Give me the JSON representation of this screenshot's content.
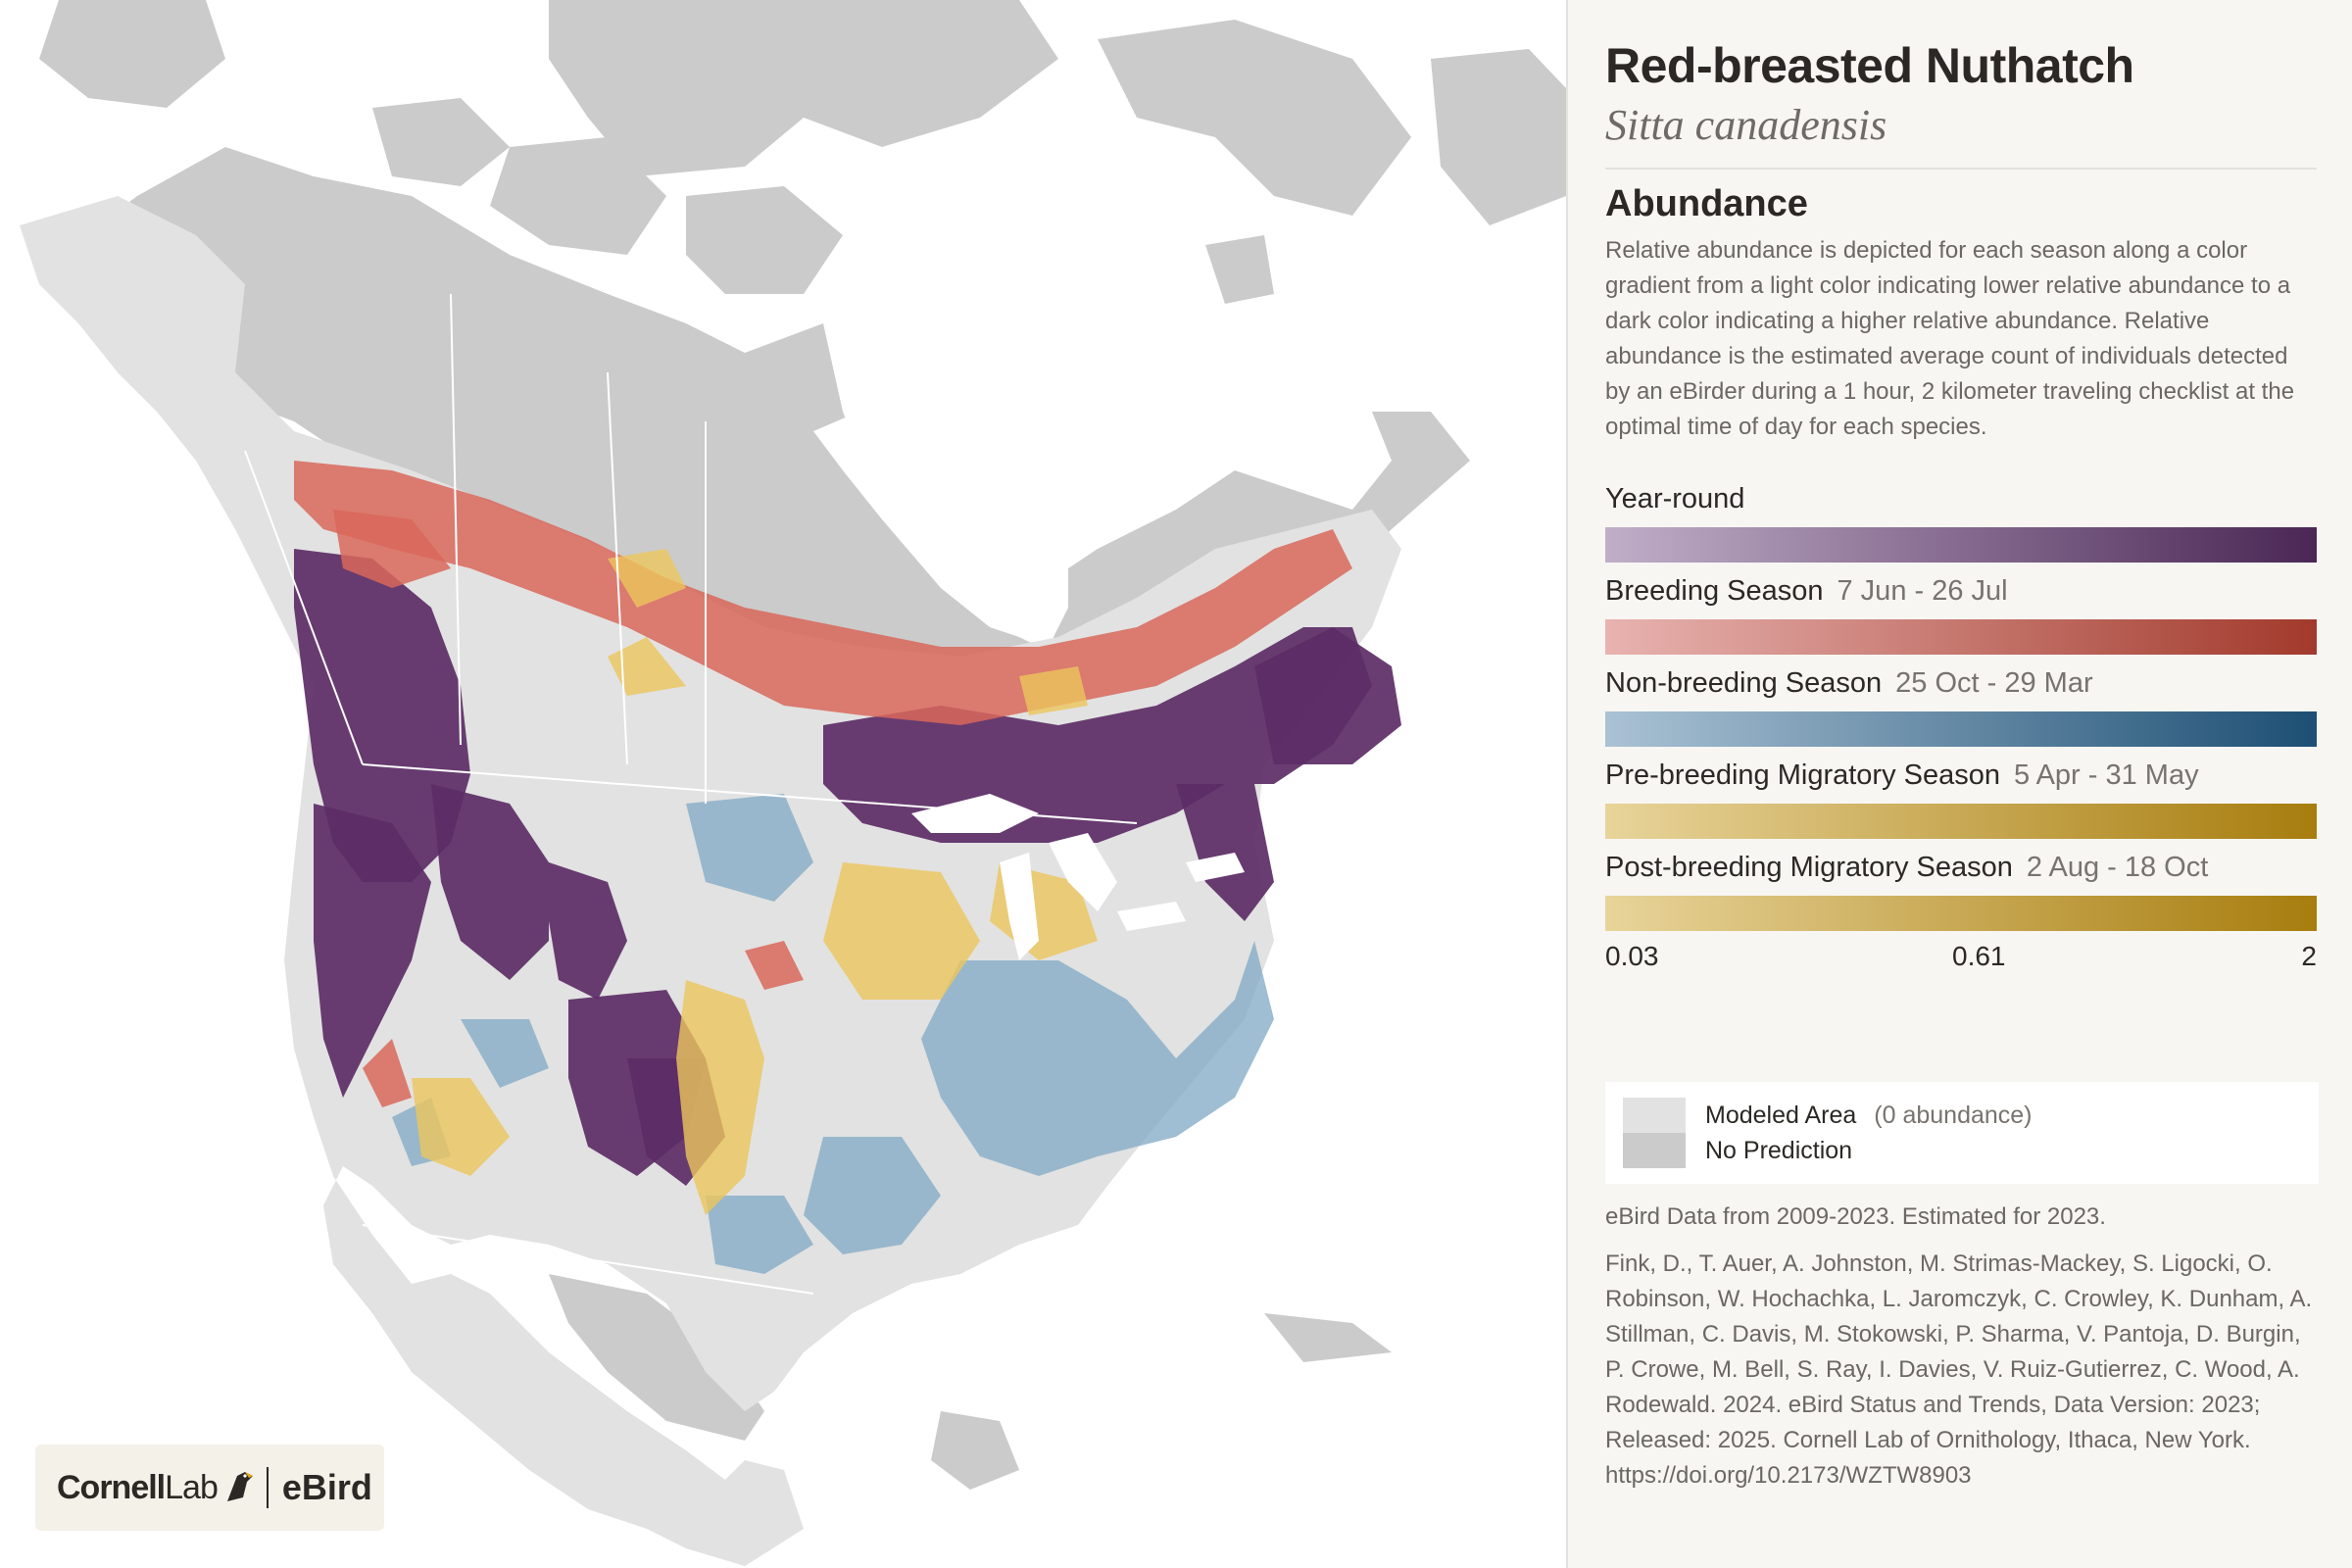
{
  "species": {
    "common_name": "Red-breasted Nuthatch",
    "scientific_name": "Sitta canadensis"
  },
  "abundance": {
    "heading": "Abundance",
    "description": "Relative abundance is depicted for each season along a color gradient from a light color indicating lower relative abundance to a dark color indicating a higher relative abundance. Relative abundance is the estimated average count of individuals detected by an eBirder during a 1 hour, 2 kilometer traveling checklist at the optimal time of day for each species."
  },
  "seasons": [
    {
      "label": "Year-round",
      "dates": "",
      "color_start": "#c0aec8",
      "color_end": "#4a2755"
    },
    {
      "label": "Breeding Season",
      "dates": "7 Jun - 26 Jul",
      "color_start": "#e8b3b0",
      "color_end": "#a23a2c"
    },
    {
      "label": "Non-breeding Season",
      "dates": "25 Oct - 29 Mar",
      "color_start": "#aac2d4",
      "color_end": "#1d4f74"
    },
    {
      "label": "Pre-breeding Migratory Season",
      "dates": "5 Apr - 31 May",
      "color_start": "#e8d49a",
      "color_end": "#a77d0e"
    },
    {
      "label": "Post-breeding Migratory Season",
      "dates": "2 Aug - 18 Oct",
      "color_start": "#e8d49a",
      "color_end": "#a77d0e"
    }
  ],
  "scale": {
    "min": "0.03",
    "mid": "0.61",
    "max": "2"
  },
  "legend": {
    "modeled_area": "Modeled Area",
    "modeled_area_note": "(0 abundance)",
    "no_prediction": "No Prediction",
    "modeled_color": "#e2e2e2",
    "no_prediction_color": "#cbcbcb"
  },
  "data_note": "eBird Data from 2009-2023. Estimated for 2023.",
  "citation": "Fink, D., T. Auer, A. Johnston, M. Strimas-Mackey, S. Ligocki, O. Robinson, W. Hochachka, L. Jaromczyk, C. Crowley, K. Dunham, A. Stillman, C. Davis, M. Stokowski, P. Sharma, V. Pantoja, D. Burgin, P. Crowe, M. Bell, S. Ray, I. Davies, V. Ruiz-Gutierrez, C. Wood, A. Rodewald. 2024. eBird Status and Trends, Data Version: 2023; Released: 2025. Cornell Lab of Ornithology, Ithaca, New York.",
  "citation_doi": "https://doi.org/10.2173/WZTW8903",
  "logo": {
    "cornell": "Cornell",
    "lab": "Lab",
    "ebird": "eBird"
  },
  "map_colors": {
    "no_prediction": "#cbcbcb",
    "modeled": "#e2e2e2",
    "water": "#ffffff",
    "year_round": "#5c2d66",
    "breeding": "#d9675a",
    "nonbreeding": "#7fa8c4",
    "migration": "#ecc55c"
  }
}
